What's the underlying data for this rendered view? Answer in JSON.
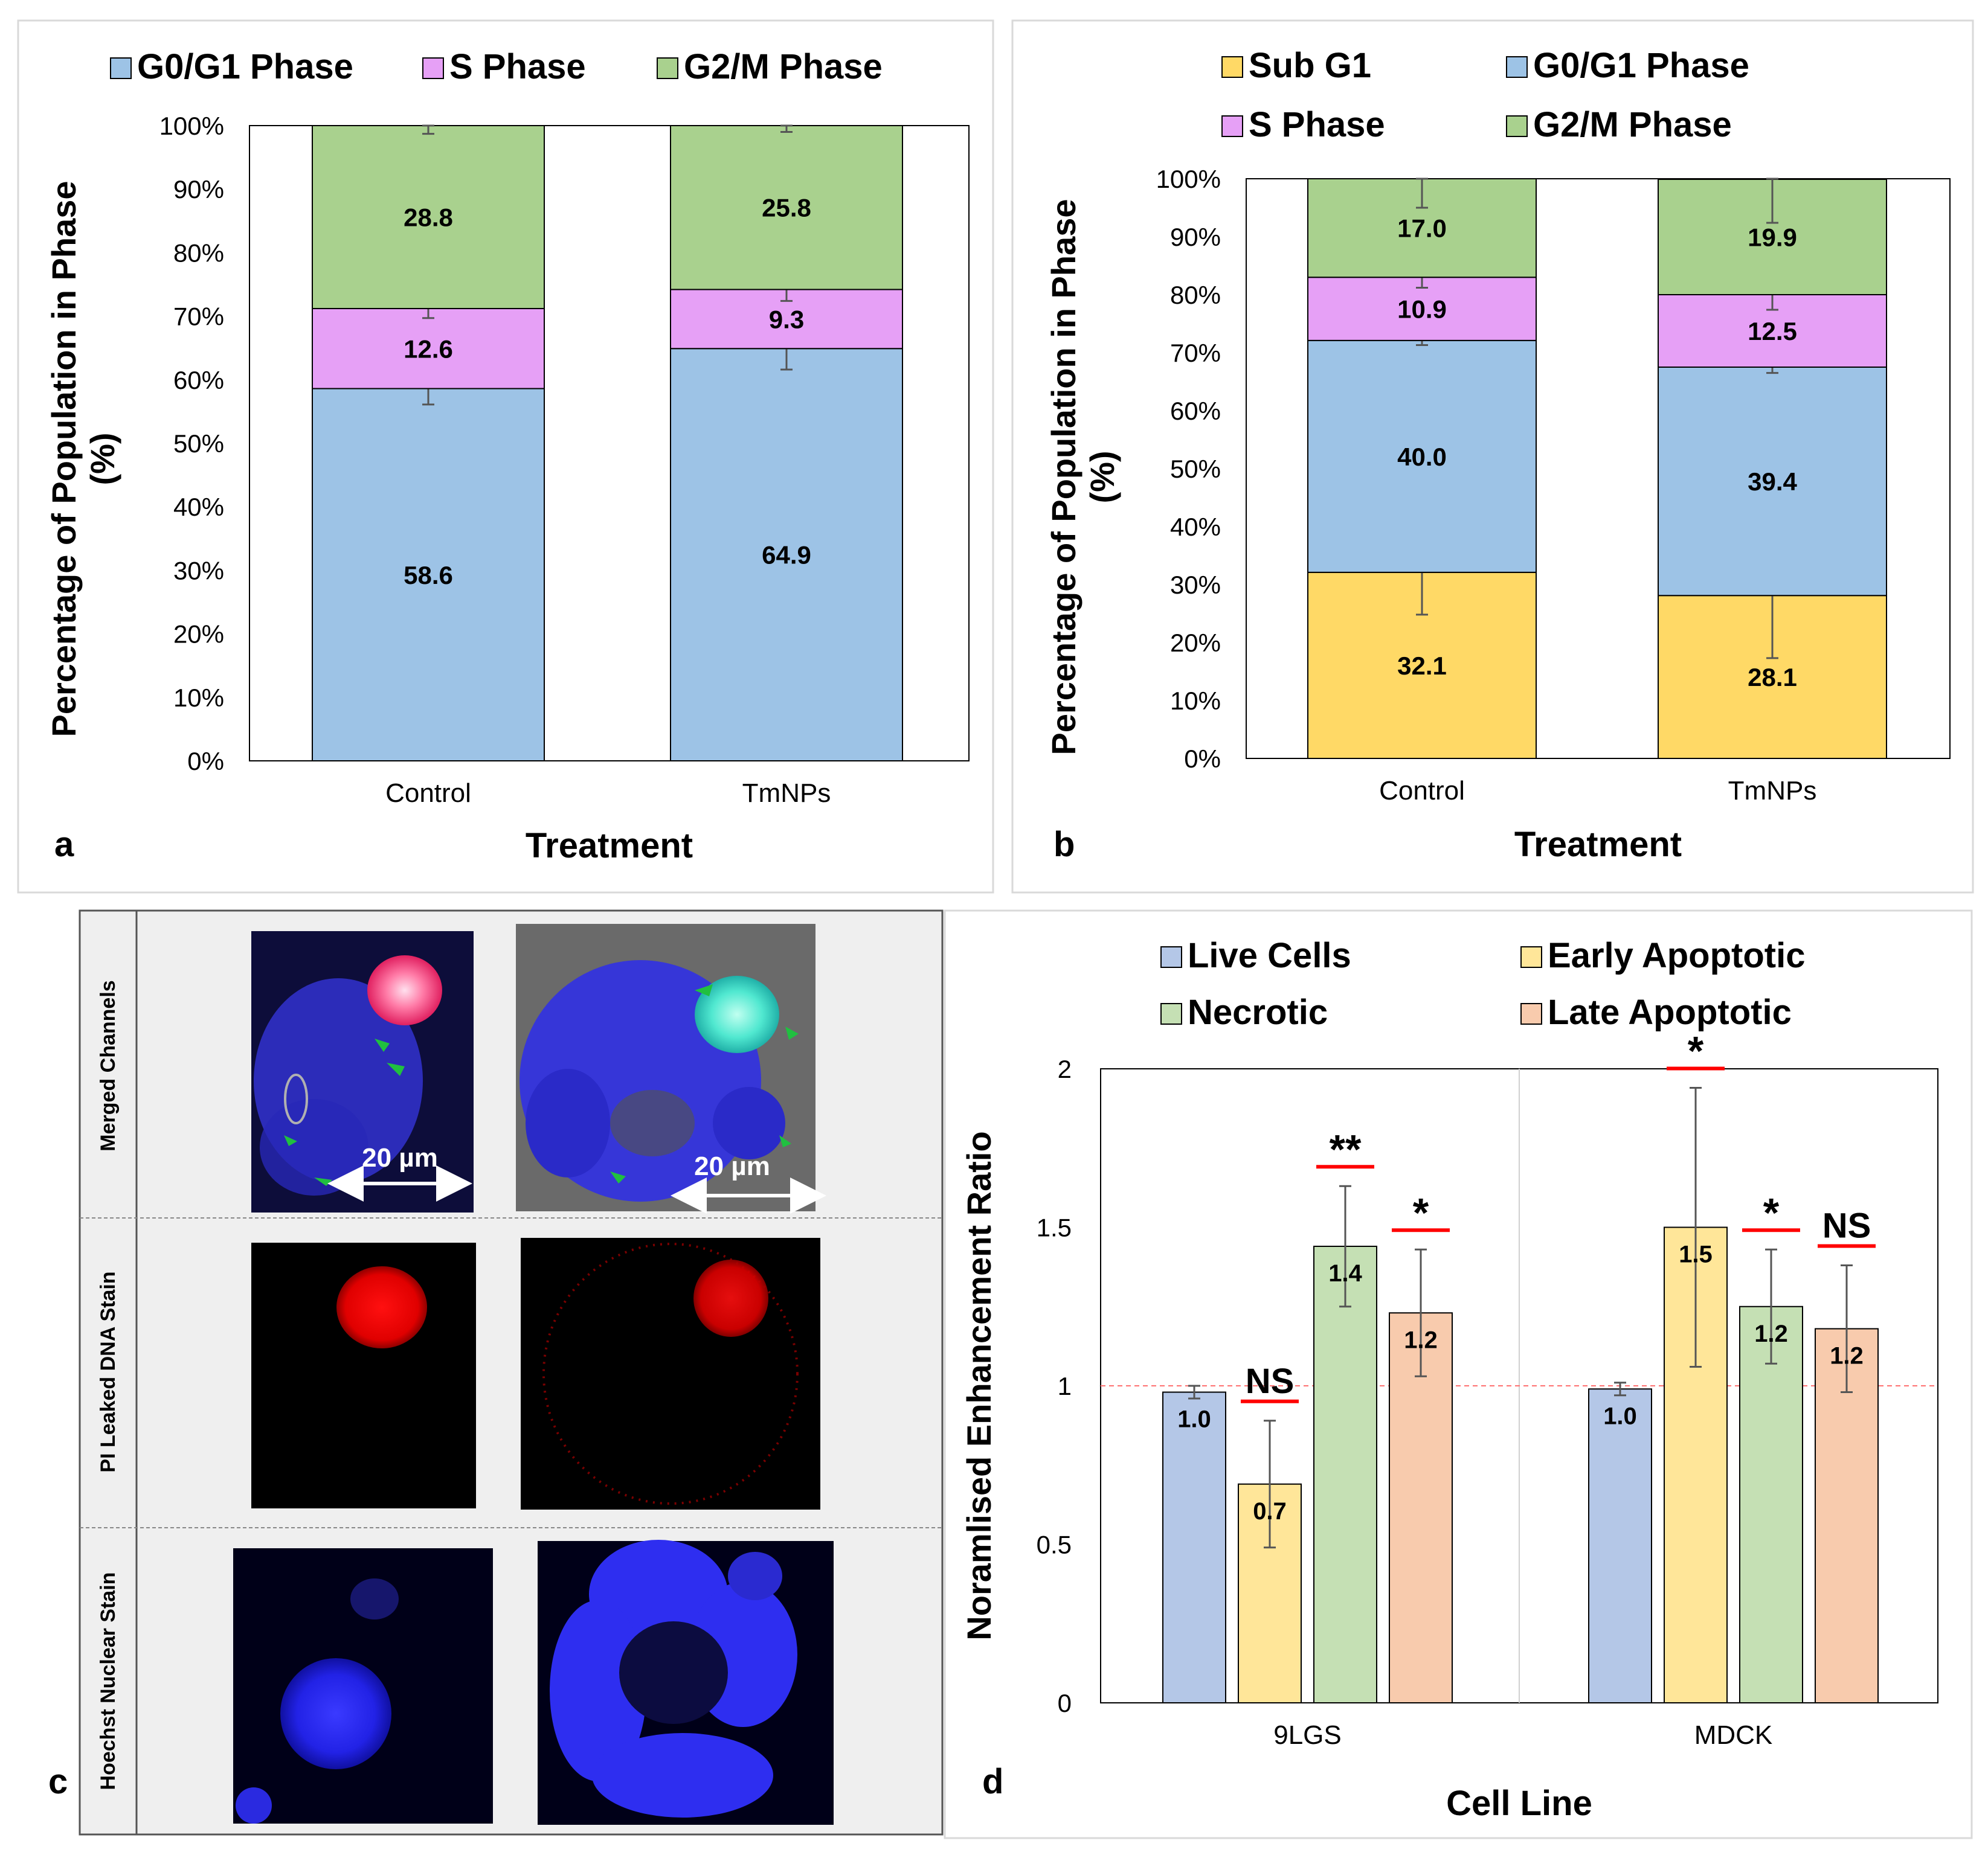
{
  "chart_data": [
    {
      "panel": "a",
      "type": "bar",
      "stacked": true,
      "ylabel": "Percentage of Population in Phase (%)",
      "ylabel_lines": [
        "Percentage of Population in Phase",
        "(%)"
      ],
      "xlabel": "Treatment",
      "categories": [
        "Control",
        "TmNPs"
      ],
      "ylim": [
        0,
        100
      ],
      "ytick_labels": [
        "0%",
        "10%",
        "20%",
        "30%",
        "40%",
        "50%",
        "60%",
        "70%",
        "80%",
        "90%",
        "100%"
      ],
      "legend_placement": "top",
      "series": [
        {
          "name": "G0/G1 Phase",
          "color": "#9dc3e6",
          "values": [
            58.6,
            64.9
          ],
          "labels": [
            "58.6",
            "64.9"
          ],
          "err": [
            2.5,
            3.3
          ]
        },
        {
          "name": "S Phase",
          "color": "#e6a0f6",
          "values": [
            12.6,
            9.3
          ],
          "labels": [
            "12.6",
            "9.3"
          ],
          "err": [
            1.5,
            1.8
          ]
        },
        {
          "name": "G2/M Phase",
          "color": "#a9d18e",
          "values": [
            28.8,
            25.8
          ],
          "labels": [
            "28.8",
            "25.8"
          ],
          "err": [
            1.3,
            1.0
          ]
        }
      ]
    },
    {
      "panel": "b",
      "type": "bar",
      "stacked": true,
      "ylabel": "Percentage of Population in Phase (%)",
      "ylabel_lines": [
        "Percentage of Population in Phase",
        "(%)"
      ],
      "xlabel": "Treatment",
      "categories": [
        "Control",
        "TmNPs"
      ],
      "ylim": [
        0,
        100
      ],
      "ytick_labels": [
        "0%",
        "10%",
        "20%",
        "30%",
        "40%",
        "50%",
        "60%",
        "70%",
        "80%",
        "90%",
        "100%"
      ],
      "legend_placement": "top",
      "series": [
        {
          "name": "Sub G1",
          "color": "#ffd966",
          "values": [
            32.1,
            28.1
          ],
          "labels": [
            "32.1",
            "28.1"
          ],
          "err": [
            7.3,
            10.8
          ]
        },
        {
          "name": "G0/G1 Phase",
          "color": "#9dc3e6",
          "values": [
            40.0,
            39.4
          ],
          "labels": [
            "40.0",
            "39.4"
          ],
          "err": [
            0.8,
            1.0
          ]
        },
        {
          "name": "S Phase",
          "color": "#e6a0f6",
          "values": [
            10.9,
            12.5
          ],
          "labels": [
            "10.9",
            "12.5"
          ],
          "err": [
            1.8,
            2.6
          ]
        },
        {
          "name": "G2/M Phase",
          "color": "#a9d18e",
          "values": [
            17.0,
            19.9
          ],
          "labels": [
            "17.0",
            "19.9"
          ],
          "err": [
            5.0,
            7.5
          ]
        }
      ]
    },
    {
      "panel": "d",
      "type": "bar",
      "ylabel": "Noramlised Enhancement Ratio",
      "xlabel": "Cell Line",
      "categories": [
        "9LGS",
        "MDCK"
      ],
      "ylim": [
        0,
        2
      ],
      "ytick_labels": [
        "0",
        "0.5",
        "1",
        "1.5",
        "2"
      ],
      "reference_line": 1.0,
      "legend_placement": "top",
      "series": [
        {
          "name": "Live Cells",
          "color": "#b4c7e7",
          "values": [
            0.98,
            0.99
          ],
          "labels": [
            "1.0",
            "1.0"
          ],
          "err": [
            0.02,
            0.02
          ],
          "sig": [
            "",
            ""
          ]
        },
        {
          "name": "Early Apoptotic",
          "color": "#ffe699",
          "values": [
            0.69,
            1.5
          ],
          "labels": [
            "0.7",
            "1.5"
          ],
          "err": [
            0.2,
            0.44
          ],
          "sig": [
            "NS",
            "*"
          ]
        },
        {
          "name": "Necrotic",
          "color": "#c5e0b4",
          "values": [
            1.44,
            1.25
          ],
          "labels": [
            "1.4",
            "1.2"
          ],
          "err": [
            0.19,
            0.18
          ],
          "sig": [
            "**",
            "*"
          ]
        },
        {
          "name": "Late Apoptotic",
          "color": "#f8cbad",
          "values": [
            1.23,
            1.18
          ],
          "labels": [
            "1.2",
            "1.2"
          ],
          "err": [
            0.2,
            0.2
          ],
          "sig": [
            "*",
            "NS"
          ]
        }
      ]
    }
  ],
  "panel_labels": {
    "a": "a",
    "b": "b",
    "c": "c",
    "d": "d"
  },
  "panel_c": {
    "rows": [
      "Merged Channels",
      "PI  Leaked DNA Stain",
      "Hoechst Nuclear Stain"
    ],
    "scale_bar": "20 µm"
  }
}
